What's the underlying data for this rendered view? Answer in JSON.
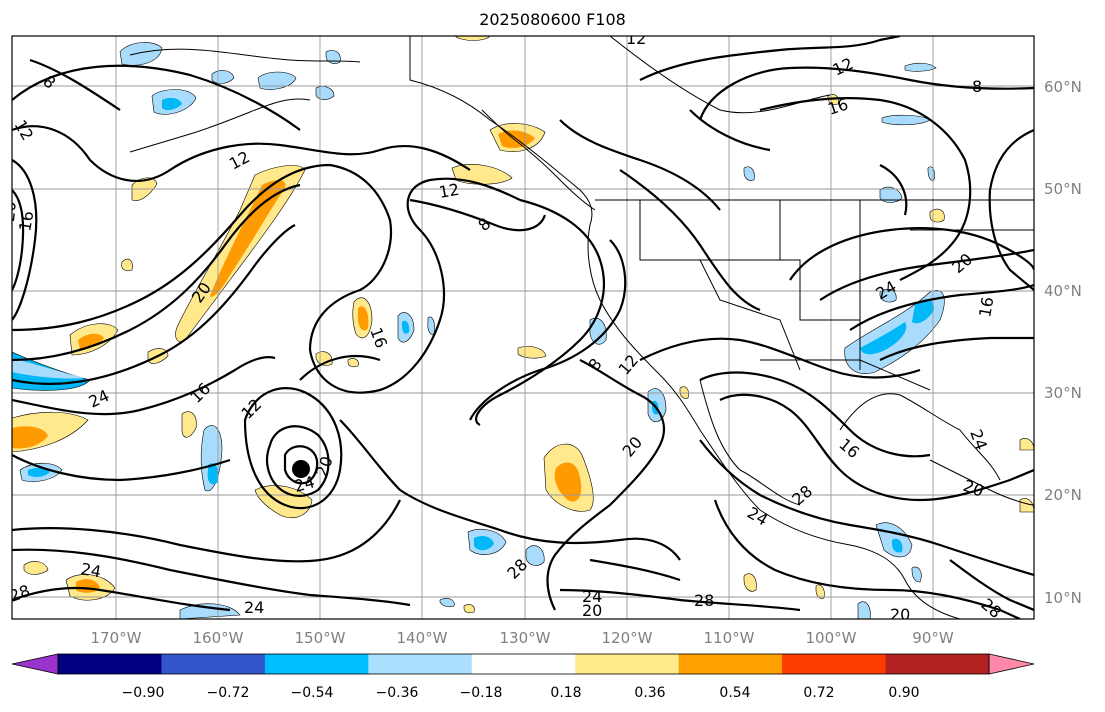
{
  "title": "2025080600 F108",
  "map": {
    "lon_labels": [
      "170°W",
      "160°W",
      "150°W",
      "140°W",
      "130°W",
      "120°W",
      "110°W",
      "100°W",
      "90°W"
    ],
    "lat_labels": [
      "60°N",
      "50°N",
      "40°N",
      "30°N",
      "20°N",
      "10°N"
    ],
    "storm_marker": "filled-black-circle",
    "contour_labels": [
      "8",
      "12",
      "16",
      "20",
      "24",
      "28"
    ],
    "grid": true,
    "field_colors": {
      "strong_positive": "#ff9a00",
      "weak_positive": "#ffe98c",
      "weak_negative": "#a9dcfc",
      "strong_negative": "#00b8f7"
    }
  },
  "colorbar": {
    "ticks": [
      "−0.90",
      "−0.72",
      "−0.54",
      "−0.36",
      "−0.18",
      "0.18",
      "0.36",
      "0.54",
      "0.72",
      "0.90"
    ],
    "colors": [
      "#9933cc",
      "#000080",
      "#3355cc",
      "#00bfff",
      "#aadffd",
      "#ffffff",
      "#ffe98a",
      "#ffa000",
      "#ff3c00",
      "#b22222",
      "#ff88aa"
    ]
  }
}
